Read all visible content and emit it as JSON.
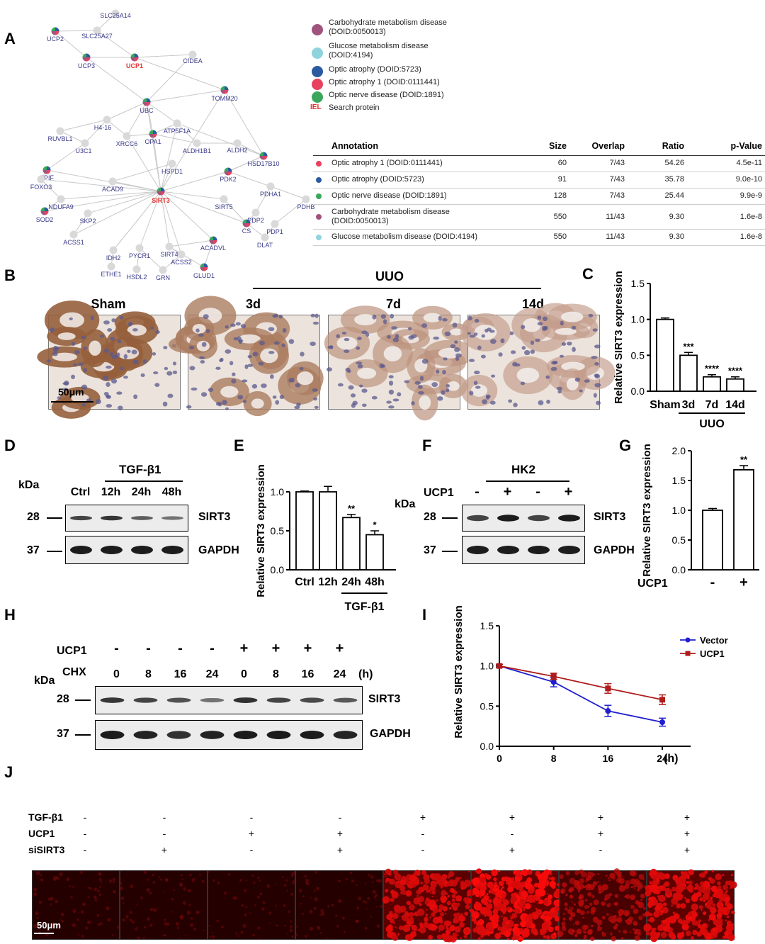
{
  "panel_labels": [
    "A",
    "B",
    "C",
    "D",
    "E",
    "F",
    "G",
    "H",
    "I",
    "J"
  ],
  "network": {
    "nodes": [
      {
        "name": "SLC25A14",
        "dot": "#d9d9d9"
      },
      {
        "name": "UCP2",
        "dot": "pie"
      },
      {
        "name": "SLC25A27",
        "dot": "#d9d9d9"
      },
      {
        "name": "UCP3",
        "dot": "pie"
      },
      {
        "name": "UCP1",
        "dot": "pie",
        "highlight": true
      },
      {
        "name": "CIDEA",
        "dot": "#d9d9d9"
      },
      {
        "name": "TOMM20",
        "dot": "pie"
      },
      {
        "name": "UBC",
        "dot": "pie"
      },
      {
        "name": "H4-16",
        "dot": "#d9d9d9"
      },
      {
        "name": "ATP5F1A",
        "dot": "#d9d9d9"
      },
      {
        "name": "RUVBL1",
        "dot": "#d9d9d9"
      },
      {
        "name": "XRCC6",
        "dot": "#d9d9d9"
      },
      {
        "name": "OPA1",
        "dot": "pie"
      },
      {
        "name": "U3C1",
        "dot": "#d9d9d9"
      },
      {
        "name": "ALDH1B1",
        "dot": "#d9d9d9"
      },
      {
        "name": "ALDH2",
        "dot": "#d9d9d9"
      },
      {
        "name": "HSD17B10",
        "dot": "pie"
      },
      {
        "name": "PPIF",
        "dot": "pie"
      },
      {
        "name": "HSPD1",
        "dot": "#d9d9d9"
      },
      {
        "name": "PDK2",
        "dot": "pie"
      },
      {
        "name": "FOXO3",
        "dot": "#d9d9d9"
      },
      {
        "name": "ACAD9",
        "dot": "#d9d9d9"
      },
      {
        "name": "PDHA1",
        "dot": "#d9d9d9"
      },
      {
        "name": "NDUFA9",
        "dot": "#d9d9d9"
      },
      {
        "name": "SIRT3",
        "dot": "pie",
        "highlight": true
      },
      {
        "name": "SIRT5",
        "dot": "#d9d9d9"
      },
      {
        "name": "PDHB",
        "dot": "#d9d9d9"
      },
      {
        "name": "SOD2",
        "dot": "pie"
      },
      {
        "name": "SKP2",
        "dot": "#d9d9d9"
      },
      {
        "name": "PDP2",
        "dot": "#d9d9d9"
      },
      {
        "name": "CS",
        "dot": "pie"
      },
      {
        "name": "PDP1",
        "dot": "#d9d9d9"
      },
      {
        "name": "ACSS1",
        "dot": "#d9d9d9"
      },
      {
        "name": "SIRT4",
        "dot": "#d9d9d9"
      },
      {
        "name": "IDH2",
        "dot": "#d9d9d9"
      },
      {
        "name": "PYCR1",
        "dot": "#d9d9d9"
      },
      {
        "name": "ACSS2",
        "dot": "#d9d9d9"
      },
      {
        "name": "ACADVL",
        "dot": "pie"
      },
      {
        "name": "DLAT",
        "dot": "#d9d9d9"
      },
      {
        "name": "ETHE1",
        "dot": "#d9d9d9"
      },
      {
        "name": "HSDL2",
        "dot": "#d9d9d9"
      },
      {
        "name": "GRN",
        "dot": "#d9d9d9"
      },
      {
        "name": "GLUD1",
        "dot": "pie"
      }
    ],
    "legend": [
      {
        "label": "Carbohydrate metabolism disease\n(DOID:0050013)",
        "color": "#a0537c"
      },
      {
        "label": "Glucose metabolism disease\n(DOID:4194)",
        "color": "#8fd3dc"
      },
      {
        "label": "Optic atrophy (DOID:5723)",
        "color": "#2b5aa0"
      },
      {
        "label": "Optic atrophy 1 (DOID:0111441)",
        "color": "#e8415f"
      },
      {
        "label": "Optic nerve disease (DOID:1891)",
        "color": "#3aa75c"
      }
    ],
    "search_legend": {
      "icon": "IEL",
      "label": "Search protein"
    }
  },
  "annotation_table": {
    "headers": [
      "Annotation",
      "Size",
      "Overlap",
      "Ratio",
      "p-Value"
    ],
    "rows": [
      {
        "dot": "#e8415f",
        "annotation": "Optic atrophy 1 (DOID:0111441)",
        "size": "60",
        "overlap": "7/43",
        "ratio": "54.26",
        "p": "4.5e-11"
      },
      {
        "dot": "#2b5aa0",
        "annotation": "Optic atrophy (DOID:5723)",
        "size": "91",
        "overlap": "7/43",
        "ratio": "35.78",
        "p": "9.0e-10"
      },
      {
        "dot": "#3aa75c",
        "annotation": "Optic nerve disease (DOID:1891)",
        "size": "128",
        "overlap": "7/43",
        "ratio": "25.44",
        "p": "9.9e-9"
      },
      {
        "dot": "#a0537c",
        "annotation": "Carbohydrate metabolism disease\n(DOID:0050013)",
        "size": "550",
        "overlap": "11/43",
        "ratio": "9.30",
        "p": "1.6e-8"
      },
      {
        "dot": "#8fd3dc",
        "annotation": "Glucose metabolism disease (DOID:4194)",
        "size": "550",
        "overlap": "11/43",
        "ratio": "9.30",
        "p": "1.6e-8"
      }
    ]
  },
  "ihc": {
    "group_label": "UUO",
    "labels": [
      "Sham",
      "3d",
      "7d",
      "14d"
    ],
    "scale_bar": "50μm"
  },
  "western_d": {
    "kda": "kDa",
    "treatment": "TGF-β1",
    "lanes": [
      "Ctrl",
      "12h",
      "24h",
      "48h"
    ],
    "markers": [
      "28",
      "37"
    ],
    "proteins": [
      "SIRT3",
      "GAPDH"
    ]
  },
  "western_f": {
    "kda": "kDa",
    "cell": "HK2",
    "row_label": "UCP1",
    "signs": [
      "-",
      "+",
      "-",
      "+"
    ],
    "markers": [
      "28",
      "37"
    ],
    "proteins": [
      "SIRT3",
      "GAPDH"
    ]
  },
  "western_h": {
    "kda": "kDa",
    "ucp1_label": "UCP1",
    "ucp1_signs": [
      "-",
      "-",
      "-",
      "-",
      "+",
      "+",
      "+",
      "+"
    ],
    "chx_label": "CHX",
    "chx_times": [
      "0",
      "8",
      "16",
      "24",
      "0",
      "8",
      "16",
      "24"
    ],
    "unit": "(h)",
    "markers": [
      "28",
      "37"
    ],
    "proteins": [
      "SIRT3",
      "GAPDH"
    ]
  },
  "chart_data": [
    {
      "panel": "C",
      "type": "bar",
      "ylabel": "Relative SIRT3 expression",
      "ylim": [
        0,
        1.5
      ],
      "yticks": [
        "0.0",
        "0.5",
        "1.0",
        "1.5"
      ],
      "categories": [
        "Sham",
        "3d",
        "7d",
        "14d"
      ],
      "values": [
        1.0,
        0.5,
        0.2,
        0.17
      ],
      "errors": [
        0.02,
        0.04,
        0.03,
        0.03
      ],
      "significance": [
        "",
        "***",
        "****",
        "****"
      ],
      "group_label": "UUO"
    },
    {
      "panel": "E",
      "type": "bar",
      "ylabel": "Relative SIRT3 expression",
      "ylim": [
        0,
        1.0
      ],
      "yticks": [
        "0.0",
        "0.5",
        "1.0"
      ],
      "categories": [
        "Ctrl",
        "12h",
        "24h",
        "48h"
      ],
      "values": [
        1.0,
        1.0,
        0.67,
        0.45
      ],
      "errors": [
        0.01,
        0.07,
        0.04,
        0.05
      ],
      "significance": [
        "",
        "",
        "**",
        "*"
      ],
      "group_label": "TGF-β1"
    },
    {
      "panel": "G",
      "type": "bar",
      "ylabel": "Relative SIRT3 expression",
      "ylim": [
        0,
        2.0
      ],
      "yticks": [
        "0.0",
        "0.5",
        "1.0",
        "1.5",
        "2.0"
      ],
      "categories": [
        "-",
        "+"
      ],
      "values": [
        1.0,
        1.68
      ],
      "errors": [
        0.03,
        0.07
      ],
      "significance": [
        "",
        "**"
      ],
      "row_label": "UCP1"
    },
    {
      "panel": "I",
      "type": "line",
      "ylabel": "Relative SIRT3 expression",
      "xlabel": "(h)",
      "x": [
        0,
        8,
        16,
        24
      ],
      "xticks": [
        "0",
        "8",
        "16",
        "24"
      ],
      "ylim": [
        0,
        1.5
      ],
      "yticks": [
        "0.0",
        "0.5",
        "1.0",
        "1.5"
      ],
      "series": [
        {
          "name": "Vector",
          "color": "#1f1fcf",
          "values": [
            1.0,
            0.8,
            0.44,
            0.3
          ],
          "errors": [
            0.02,
            0.06,
            0.07,
            0.05
          ]
        },
        {
          "name": "UCP1",
          "color": "#b01b1b",
          "values": [
            1.0,
            0.87,
            0.72,
            0.58
          ],
          "errors": [
            0.02,
            0.04,
            0.06,
            0.06
          ]
        }
      ],
      "legend_position": "top-right"
    }
  ],
  "panel_j": {
    "rows": [
      {
        "label": "TGF-β1",
        "signs": [
          "-",
          "-",
          "-",
          "-",
          "+",
          "+",
          "+",
          "+"
        ]
      },
      {
        "label": "UCP1",
        "signs": [
          "-",
          "-",
          "+",
          "+",
          "-",
          "-",
          "+",
          "+"
        ]
      },
      {
        "label": "siSIRT3",
        "signs": [
          "-",
          "+",
          "-",
          "+",
          "-",
          "+",
          "-",
          "+"
        ]
      }
    ],
    "intensity": [
      0.1,
      0.1,
      0.08,
      0.09,
      0.85,
      1.0,
      0.6,
      0.9
    ],
    "scale_bar": "50μm"
  }
}
